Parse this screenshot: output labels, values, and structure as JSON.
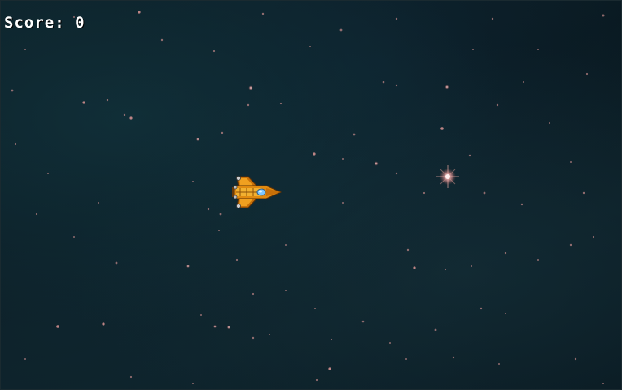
{
  "hud": {
    "score_label": "Score:",
    "score_value": "0"
  },
  "player": {
    "sprite": "orange-spaceship",
    "heading": "right",
    "hull_color": "#e08a10",
    "cockpit_color": "#7ec8ff"
  },
  "background": {
    "theme": "deep-space-nebula",
    "base_color": "#0b1c24",
    "star_color": "#e6a6a6"
  }
}
